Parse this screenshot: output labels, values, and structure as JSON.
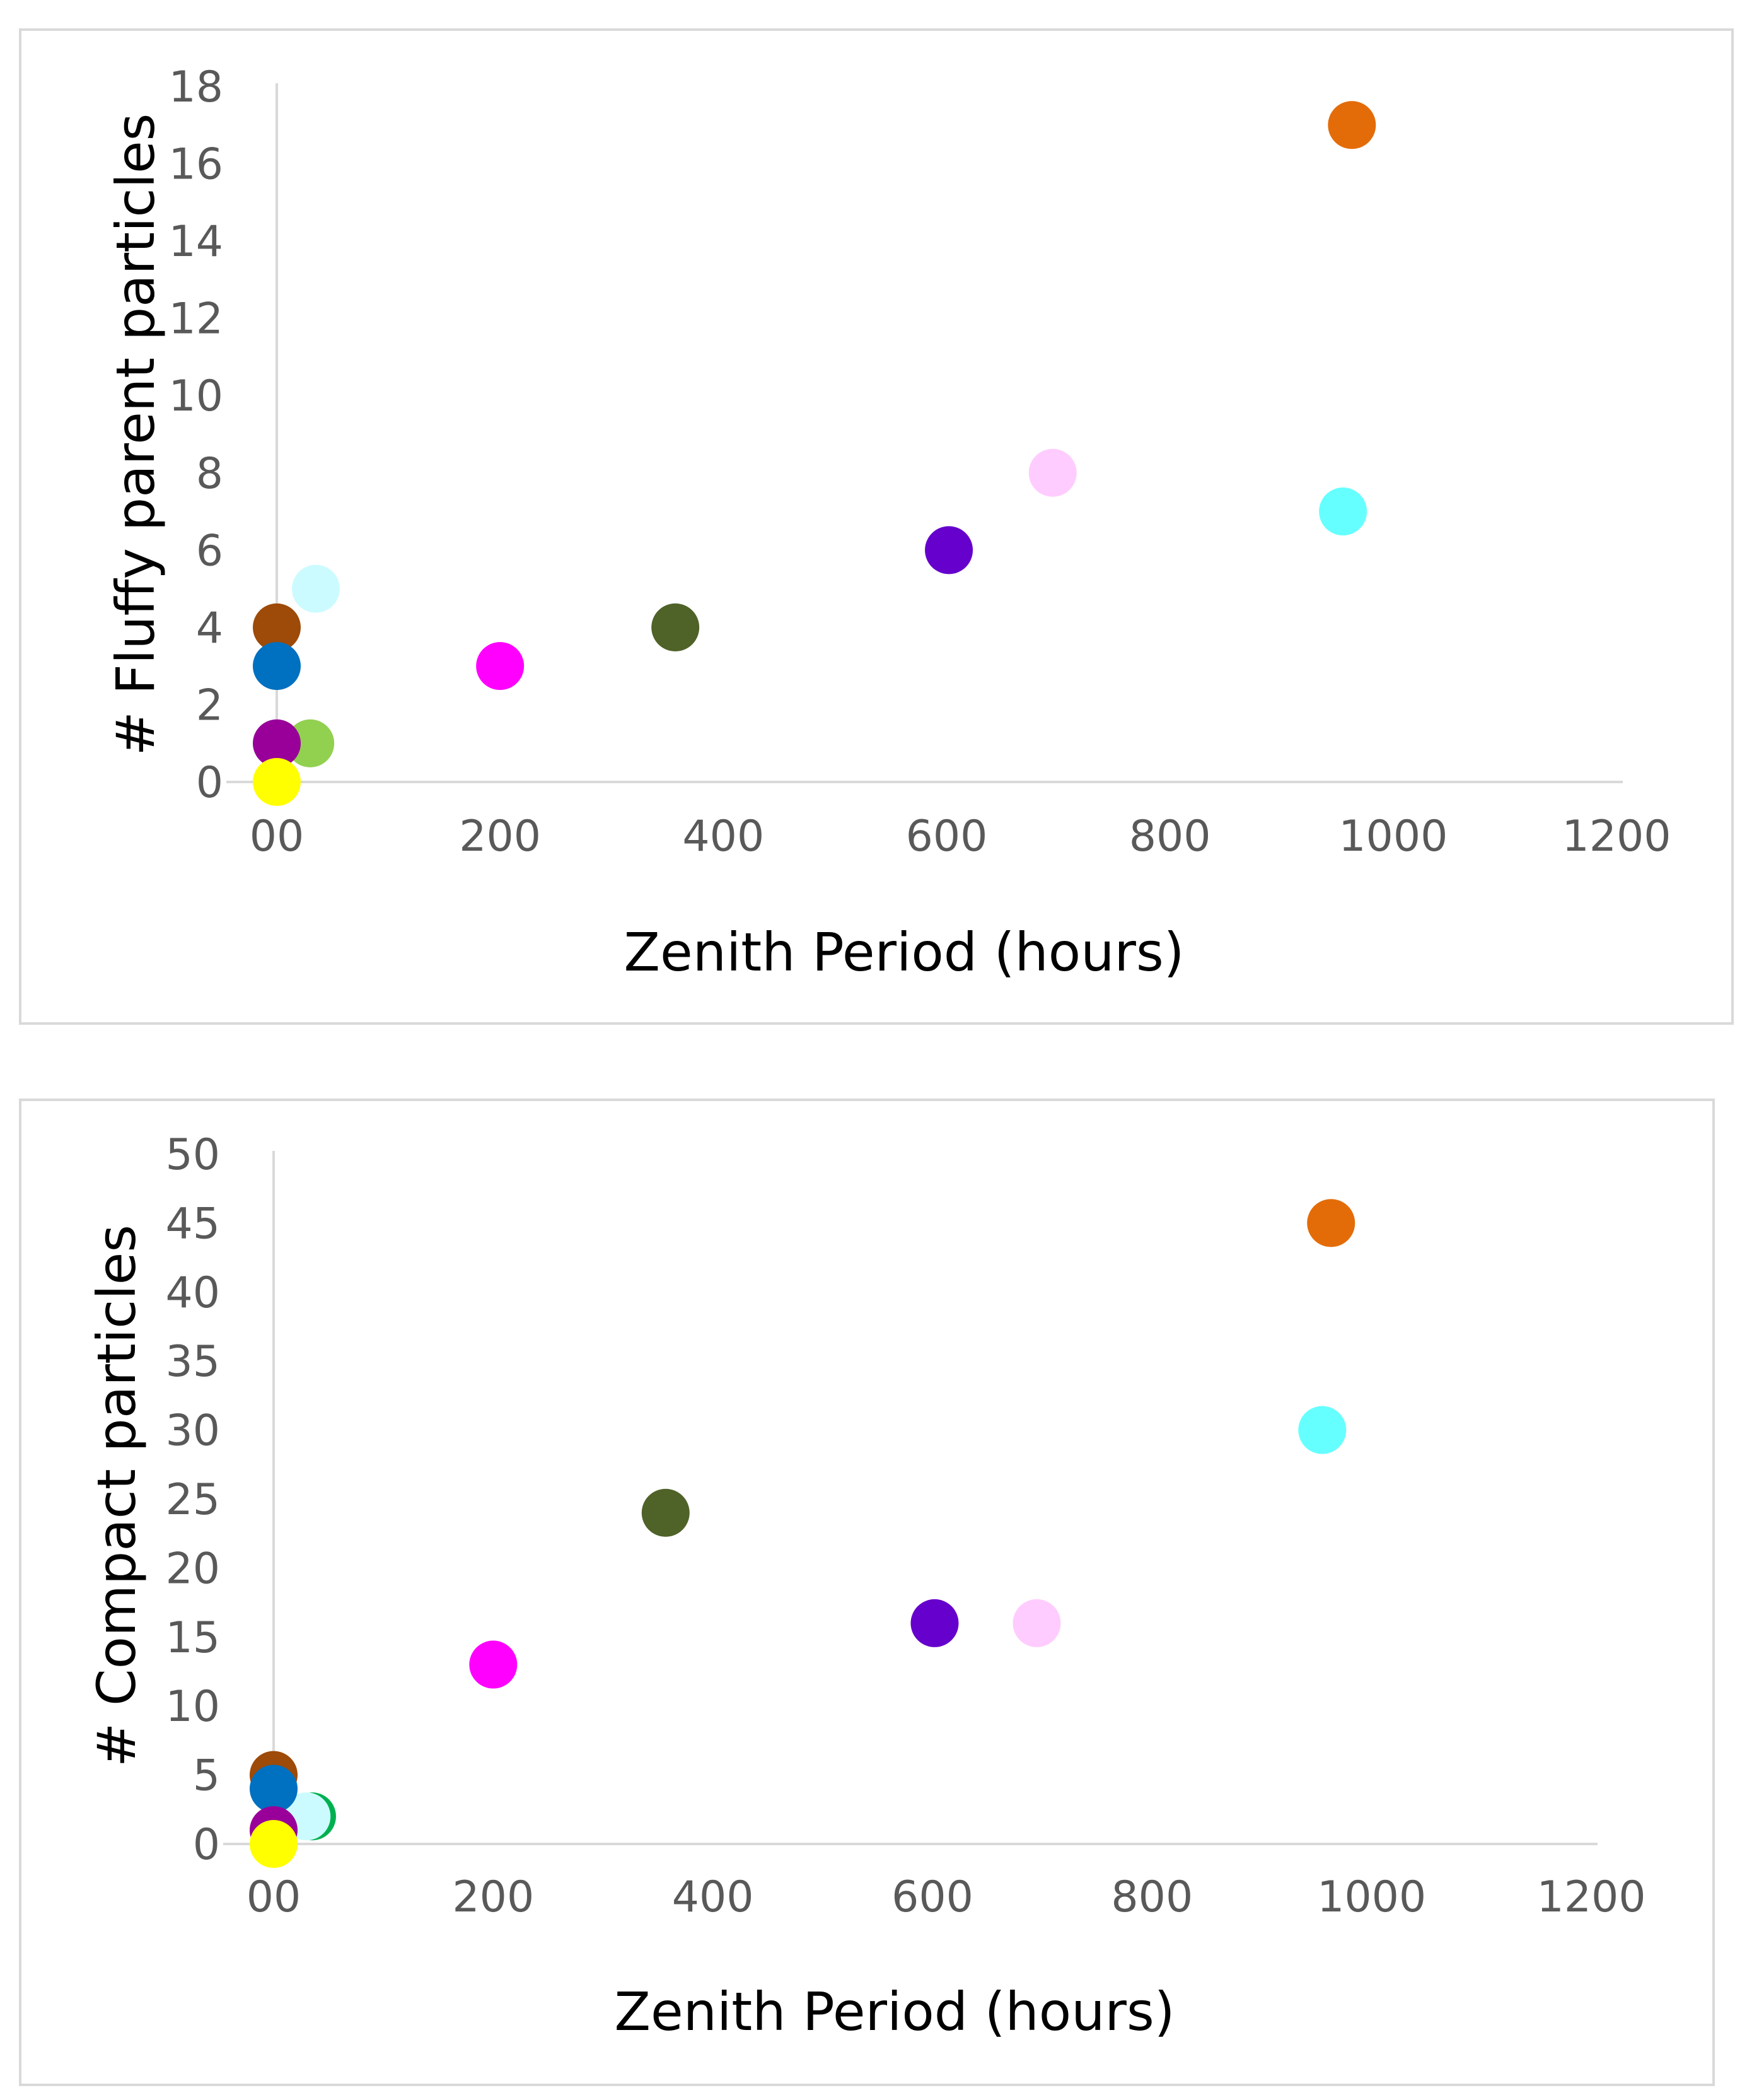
{
  "chart_data": [
    {
      "type": "scatter",
      "title": "",
      "xlabel": "Zenith Period (hours)",
      "ylabel": "# Fluffy parent particles",
      "xlim": [
        0,
        1200
      ],
      "ylim": [
        0,
        18
      ],
      "x_ticks": [
        0,
        200,
        400,
        600,
        800,
        1000,
        1200
      ],
      "x_tick_labels": [
        "00",
        "200",
        "400",
        "600",
        "800",
        "1000",
        "1200"
      ],
      "y_ticks": [
        0,
        2,
        4,
        6,
        8,
        10,
        12,
        14,
        16,
        18
      ],
      "y_tick_labels": [
        "0",
        "2",
        "4",
        "6",
        "8",
        "10",
        "12",
        "14",
        "16",
        "18"
      ],
      "grid": false,
      "points": [
        {
          "x": 0,
          "y": 4,
          "color": "#9e4a08"
        },
        {
          "x": 35,
          "y": 5,
          "color": "#ccfbff"
        },
        {
          "x": 0,
          "y": 3,
          "color": "#0070c0"
        },
        {
          "x": 30,
          "y": 1,
          "color": "#92d050"
        },
        {
          "x": 0,
          "y": 1,
          "color": "#990099"
        },
        {
          "x": 0,
          "y": 0,
          "color": "#ffff00"
        },
        {
          "x": 200,
          "y": 3,
          "color": "#ff00ff"
        },
        {
          "x": 357,
          "y": 4,
          "color": "#4f6228"
        },
        {
          "x": 602,
          "y": 6,
          "color": "#6600cc"
        },
        {
          "x": 695,
          "y": 8,
          "color": "#ffccff"
        },
        {
          "x": 955,
          "y": 7,
          "color": "#66ffff"
        },
        {
          "x": 963,
          "y": 17,
          "color": "#e36c09"
        }
      ]
    },
    {
      "type": "scatter",
      "title": "",
      "xlabel": "Zenith Period (hours)",
      "ylabel": "# Compact particles",
      "xlim": [
        0,
        1200
      ],
      "ylim": [
        0,
        50
      ],
      "x_ticks": [
        0,
        200,
        400,
        600,
        800,
        1000,
        1200
      ],
      "x_tick_labels": [
        "00",
        "200",
        "400",
        "600",
        "800",
        "1000",
        "1200"
      ],
      "y_ticks": [
        0,
        5,
        10,
        15,
        20,
        25,
        30,
        35,
        40,
        45,
        50
      ],
      "y_tick_labels": [
        "0",
        "5",
        "10",
        "15",
        "20",
        "25",
        "30",
        "35",
        "40",
        "45",
        "50"
      ],
      "grid": false,
      "points": [
        {
          "x": 0,
          "y": 5,
          "color": "#9e4a08"
        },
        {
          "x": 35,
          "y": 2,
          "color": "#00b050"
        },
        {
          "x": 30,
          "y": 2,
          "color": "#ccfbff"
        },
        {
          "x": 0,
          "y": 4,
          "color": "#0070c0"
        },
        {
          "x": 0,
          "y": 1,
          "color": "#990099"
        },
        {
          "x": 0,
          "y": 0,
          "color": "#ffff00"
        },
        {
          "x": 200,
          "y": 13,
          "color": "#ff00ff"
        },
        {
          "x": 357,
          "y": 24,
          "color": "#4f6228"
        },
        {
          "x": 602,
          "y": 16,
          "color": "#6600cc"
        },
        {
          "x": 695,
          "y": 16,
          "color": "#ffccff"
        },
        {
          "x": 955,
          "y": 30,
          "color": "#66ffff"
        },
        {
          "x": 963,
          "y": 45,
          "color": "#e36c09"
        }
      ]
    }
  ]
}
